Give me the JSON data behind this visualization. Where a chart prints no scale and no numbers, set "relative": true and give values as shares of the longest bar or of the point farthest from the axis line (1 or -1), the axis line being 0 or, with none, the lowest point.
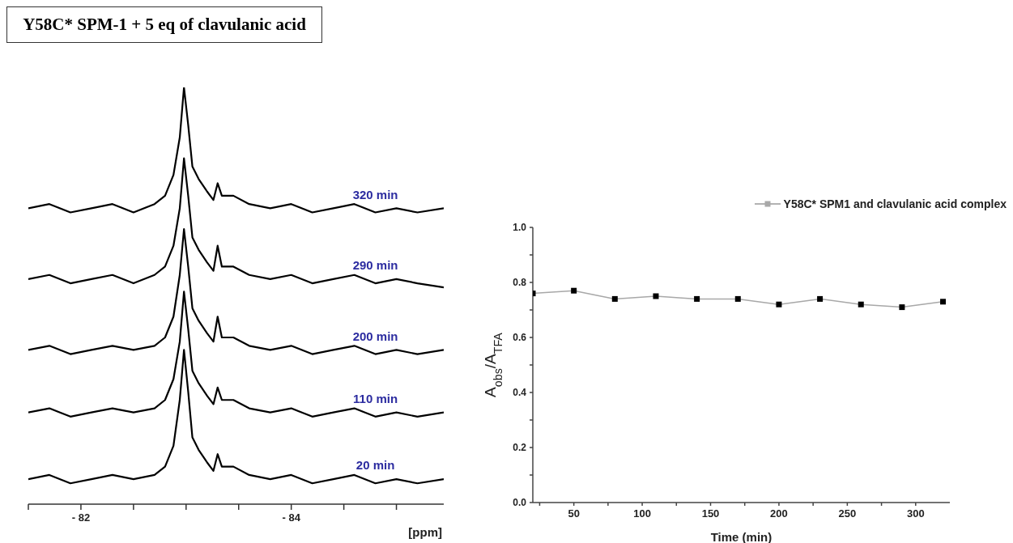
{
  "chart_data": [
    {
      "type": "line",
      "title": "Y58C* SPM-1 + 5 eq of clavulanic acid",
      "xlabel": "[ppm]",
      "relative": true,
      "grid": false,
      "legend": false,
      "tick_labels": "x",
      "marker": "none",
      "line_style": "solid",
      "xlim": [
        -81.5,
        -85.45
      ],
      "xticks": [
        {
          "value": -81.5,
          "label": null
        },
        {
          "value": -82,
          "label": "- 82"
        },
        {
          "value": -82.5,
          "label": null
        },
        {
          "value": -83,
          "label": null
        },
        {
          "value": -83.5,
          "label": null
        },
        {
          "value": -84,
          "label": "- 84"
        },
        {
          "value": -84.5,
          "label": null
        },
        {
          "value": -85,
          "label": null
        }
      ],
      "x": [
        -81.5,
        -81.7,
        -81.9,
        -82.1,
        -82.3,
        -82.5,
        -82.7,
        -82.8,
        -82.88,
        -82.94,
        -82.98,
        -83.02,
        -83.06,
        -83.12,
        -83.2,
        -83.26,
        -83.3,
        -83.34,
        -83.45,
        -83.6,
        -83.8,
        -84.0,
        -84.2,
        -84.4,
        -84.6,
        -84.8,
        -85.0,
        -85.2,
        -85.45
      ],
      "series": [
        {
          "name": "320 min",
          "color": "#000000",
          "values": [
            0.71,
            0.72,
            0.7,
            0.71,
            0.72,
            0.7,
            0.72,
            0.74,
            0.79,
            0.88,
            1.0,
            0.91,
            0.81,
            0.78,
            0.75,
            0.73,
            0.77,
            0.74,
            0.74,
            0.72,
            0.71,
            0.72,
            0.7,
            0.71,
            0.72,
            0.7,
            0.71,
            0.7,
            0.71
          ]
        },
        {
          "name": "290 min",
          "color": "#000000",
          "values": [
            0.54,
            0.55,
            0.53,
            0.54,
            0.55,
            0.53,
            0.55,
            0.57,
            0.62,
            0.71,
            0.83,
            0.74,
            0.64,
            0.61,
            0.58,
            0.56,
            0.62,
            0.57,
            0.57,
            0.55,
            0.54,
            0.55,
            0.53,
            0.54,
            0.55,
            0.53,
            0.54,
            0.53,
            0.52
          ]
        },
        {
          "name": "200 min",
          "color": "#000000",
          "values": [
            0.37,
            0.38,
            0.36,
            0.37,
            0.38,
            0.37,
            0.38,
            0.4,
            0.45,
            0.55,
            0.66,
            0.57,
            0.47,
            0.44,
            0.41,
            0.39,
            0.45,
            0.4,
            0.4,
            0.38,
            0.37,
            0.38,
            0.36,
            0.37,
            0.38,
            0.36,
            0.37,
            0.36,
            0.37
          ]
        },
        {
          "name": "110 min",
          "color": "#000000",
          "values": [
            0.22,
            0.23,
            0.21,
            0.22,
            0.23,
            0.22,
            0.23,
            0.25,
            0.3,
            0.39,
            0.51,
            0.42,
            0.32,
            0.29,
            0.26,
            0.24,
            0.28,
            0.25,
            0.25,
            0.23,
            0.22,
            0.23,
            0.21,
            0.22,
            0.23,
            0.21,
            0.22,
            0.21,
            0.22
          ]
        },
        {
          "name": "20 min",
          "color": "#000000",
          "values": [
            0.06,
            0.07,
            0.05,
            0.06,
            0.07,
            0.06,
            0.07,
            0.09,
            0.14,
            0.25,
            0.37,
            0.27,
            0.16,
            0.13,
            0.1,
            0.08,
            0.12,
            0.09,
            0.09,
            0.07,
            0.06,
            0.07,
            0.05,
            0.06,
            0.07,
            0.05,
            0.06,
            0.05,
            0.06
          ]
        }
      ]
    },
    {
      "type": "line",
      "xlabel": "Time (min)",
      "ylabel": "A$_{obs}$/A$_{TFA}$",
      "grid": false,
      "legend": "top right",
      "marker": "square",
      "line_style": "solid",
      "xlim": [
        20,
        325
      ],
      "xticks": [
        {
          "value": 25,
          "label": null
        },
        50,
        {
          "value": 75,
          "label": null
        },
        100,
        {
          "value": 125,
          "label": null
        },
        150,
        {
          "value": 175,
          "label": null
        },
        200,
        {
          "value": 225,
          "label": null
        },
        250,
        {
          "value": 275,
          "label": null
        },
        300
      ],
      "ylim": [
        0,
        1
      ],
      "yticks": [
        {
          "value": 0,
          "label": "0.0"
        },
        {
          "value": 0.1,
          "label": null
        },
        {
          "value": 0.2,
          "label": "0.2"
        },
        {
          "value": 0.3,
          "label": null
        },
        {
          "value": 0.4,
          "label": "0.4"
        },
        {
          "value": 0.5,
          "label": null
        },
        {
          "value": 0.6,
          "label": "0.6"
        },
        {
          "value": 0.7,
          "label": null
        },
        {
          "value": 0.8,
          "label": "0.8"
        },
        {
          "value": 0.9,
          "label": null
        },
        {
          "value": 1.0,
          "label": "1.0"
        }
      ],
      "x": [
        20,
        50,
        80,
        110,
        140,
        170,
        200,
        230,
        260,
        290,
        320
      ],
      "series": [
        {
          "name": "Y58C* SPM1 and clavulanic acid complex",
          "color": "#000000",
          "values": [
            0.76,
            0.77,
            0.74,
            0.75,
            0.74,
            0.74,
            0.72,
            0.74,
            0.72,
            0.71,
            0.73
          ]
        }
      ]
    }
  ]
}
